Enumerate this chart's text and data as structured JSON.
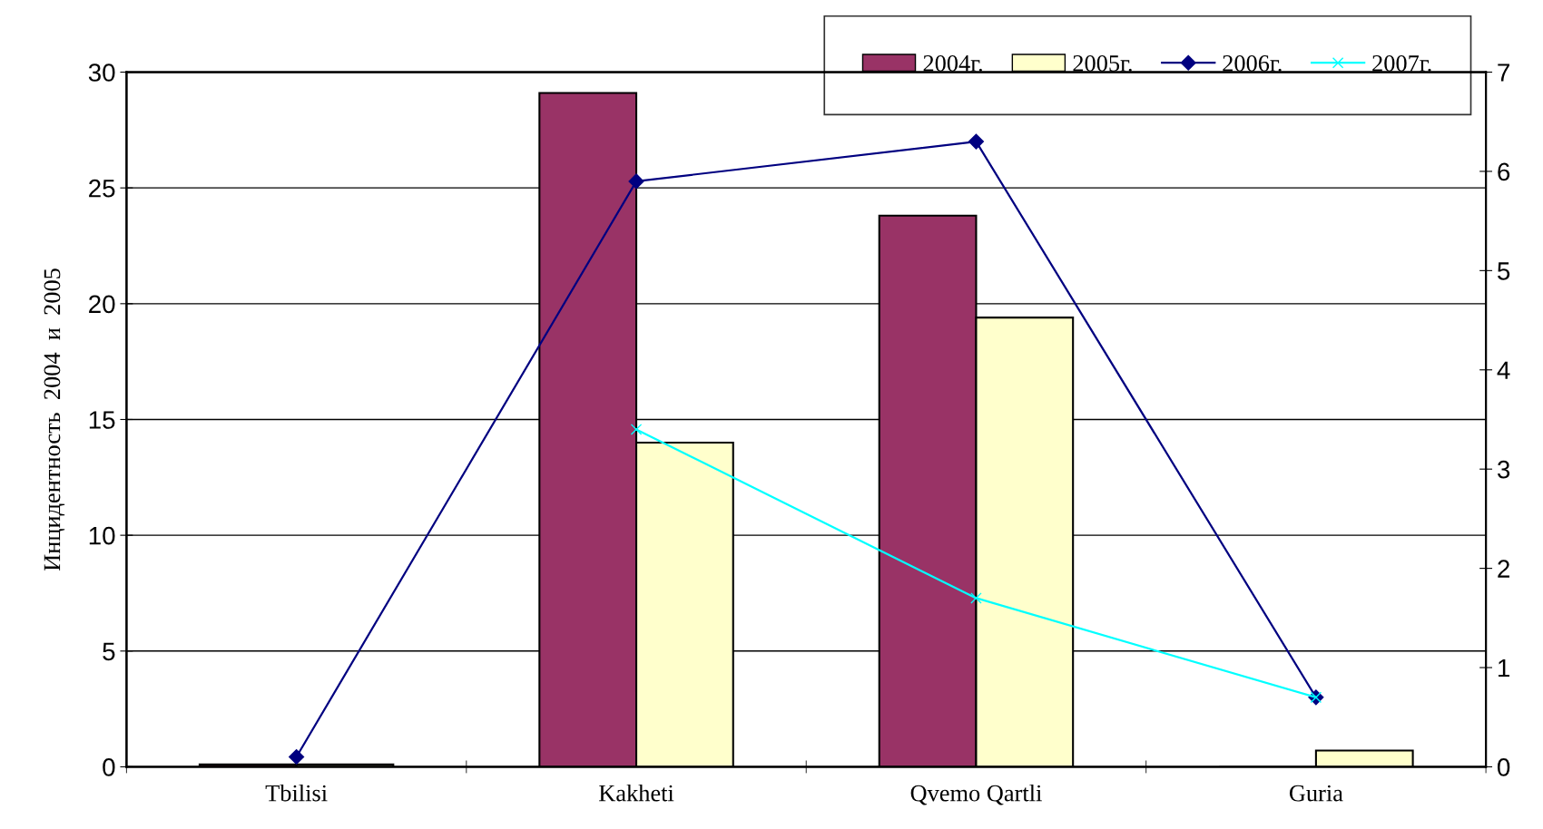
{
  "chart_data": {
    "type": "bar",
    "ylabel": "Инцидентность  2004  и  2005",
    "categories": [
      "Tbilisi",
      "Kakheti",
      "Qvemo Qartli",
      "Guria"
    ],
    "series": [
      {
        "name": "2004г.",
        "color": "#993366",
        "values": [
          0.1,
          29.1,
          23.8,
          0
        ]
      },
      {
        "name": "2005г.",
        "color": "#ffffcc",
        "values": [
          0.1,
          14.0,
          19.4,
          0.7
        ]
      },
      {
        "name": "2006г.",
        "type": "line",
        "axis": "y2",
        "color": "#000080",
        "marker": "diamond",
        "values": [
          0.1,
          5.9,
          6.3,
          0.7
        ]
      },
      {
        "name": "2007г.",
        "type": "line",
        "axis": "y2",
        "color": "#00ffff",
        "marker": "cross",
        "values": [
          null,
          3.4,
          1.7,
          0.7
        ]
      }
    ],
    "ylim": [
      0,
      30
    ],
    "yticks": [
      0,
      5,
      10,
      15,
      20,
      25,
      30
    ],
    "y2lim": [
      0,
      7
    ],
    "y2ticks": [
      0,
      1,
      2,
      3,
      4,
      5,
      6,
      7
    ],
    "grid": "y",
    "legend": "top right"
  }
}
